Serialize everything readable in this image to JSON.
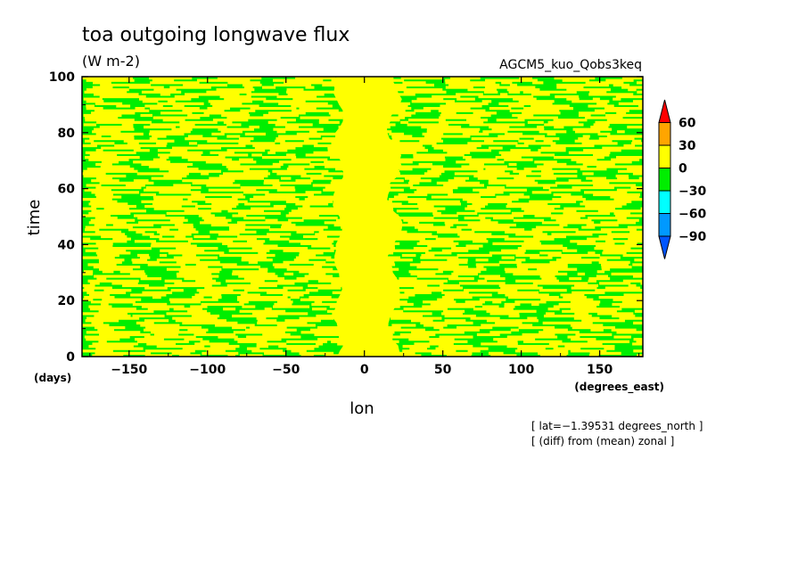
{
  "chart_data": {
    "type": "heatmap",
    "title": "toa outgoing longwave flux",
    "units": "(W m-2)",
    "model_label": "AGCM5_kuo_Qobs3keq",
    "xlabel": "lon",
    "ylabel": "time",
    "x_unit_label": "(degrees_east)",
    "y_unit_label": "(days)",
    "xlim": [
      -180,
      177.5
    ],
    "ylim": [
      0,
      100
    ],
    "xticks": [
      -150,
      -100,
      -50,
      0,
      50,
      100,
      150
    ],
    "xtick_labels": [
      "−150",
      "−100",
      "−50",
      "0",
      "50",
      "100",
      "150"
    ],
    "yticks": [
      0,
      20,
      40,
      60,
      80,
      100
    ],
    "ytick_labels": [
      "0",
      "20",
      "40",
      "60",
      "80",
      "100"
    ],
    "notes": [
      "[ lat=−1.39531 degrees_north ]",
      "[ (diff) from (mean) zonal ]"
    ],
    "colorbar": {
      "levels": [
        60,
        30,
        0,
        -30,
        -60,
        -90
      ],
      "level_labels": [
        "60",
        "30",
        "0",
        "−30",
        "−60",
        "−90"
      ],
      "colors": [
        "#ff0000",
        "#ffa500",
        "#ffff00",
        "#00ee00",
        "#00ffff",
        "#0099ff",
        "#0055ff"
      ],
      "extend": "both"
    },
    "field": {
      "description_values": "anomaly bands",
      "band_yellow_lon": [
        -15,
        15
      ],
      "band_yellow_value": 15,
      "background_value": -15
    }
  }
}
